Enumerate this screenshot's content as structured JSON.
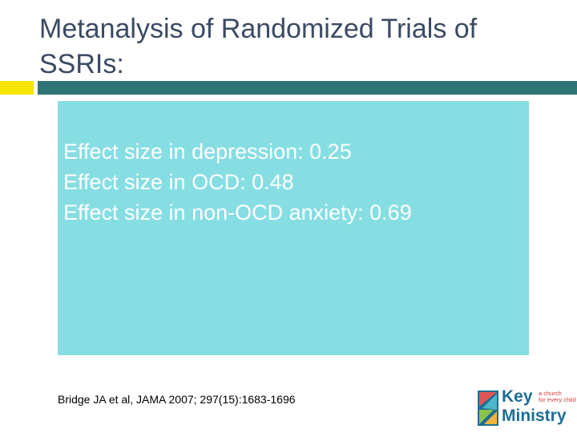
{
  "slide": {
    "title": "Metanalysis of Randomized Trials of SSRIs:",
    "content_lines": [
      "Effect size in depression: 0.25",
      "Effect size in OCD: 0.48",
      "Effect size in non-OCD anxiety: 0.69"
    ],
    "citation": "Bridge JA et al, JAMA 2007; 297(15):1683-1696"
  },
  "logo": {
    "word1": "Key",
    "word2": "Ministry",
    "tagline": [
      "a church",
      "for every child"
    ]
  },
  "colors": {
    "title": "#3b4a63",
    "accent_yellow": "#f5e500",
    "accent_teal": "#2f7577",
    "content_box": "#86dee3",
    "logo_blue": "#1d6e95",
    "logo_red": "#d23b3b"
  }
}
